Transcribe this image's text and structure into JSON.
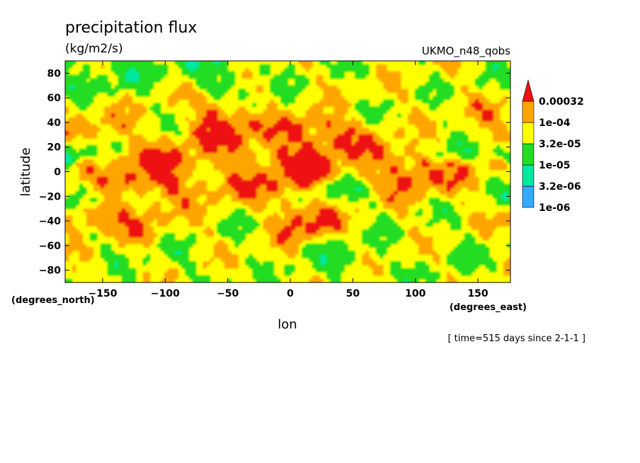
{
  "chart_data": {
    "type": "heatmap",
    "title": "precipitation flux",
    "units": "(kg/m2/s)",
    "dataset": "UKMO_n48_qobs",
    "xlabel": "lon",
    "ylabel": "latitude",
    "x_units": "(degrees_east)",
    "y_units": "(degrees_north)",
    "footnote": "[ time=515 days since 2-1-1 ]",
    "xlim": [
      -180,
      176
    ],
    "ylim": [
      -90,
      90
    ],
    "x_ticks": [
      -150,
      -100,
      -50,
      0,
      50,
      100,
      150
    ],
    "x_tick_labels": [
      "−150",
      "−100",
      "−50",
      "0",
      "50",
      "100",
      "150"
    ],
    "y_ticks": [
      -80,
      -60,
      -40,
      -20,
      0,
      20,
      40,
      60,
      80
    ],
    "y_tick_labels": [
      "−80",
      "−60",
      "−40",
      "−20",
      "0",
      "20",
      "40",
      "60",
      "80"
    ],
    "levels": [
      1e-06,
      3.2e-06,
      1e-05,
      3.2e-05,
      0.0001,
      0.00032
    ],
    "level_labels": [
      "1e-06",
      "3.2e-06",
      "1e-05",
      "3.2e-05",
      "1e-04",
      "0.00032"
    ],
    "colors": [
      "#ffffff",
      "#33aaff",
      "#00e8a0",
      "#22dd22",
      "#ffff00",
      "#ffa500",
      "#ee1111"
    ],
    "grid": false,
    "legend": "right",
    "field": [
      {
        "lon": -180,
        "lat": 10,
        "value": 6e-06
      },
      {
        "lon": -170,
        "lat": 4,
        "value": 0.00015
      },
      {
        "lon": -120,
        "lat": 3,
        "value": 0.00025
      },
      {
        "lon": -110,
        "lat": -1,
        "value": 0.0004
      },
      {
        "lon": -60,
        "lat": 2,
        "value": 0.00015
      },
      {
        "lon": -20,
        "lat": 4,
        "value": 0.0002
      },
      {
        "lon": -10,
        "lat": 5,
        "value": 0.0004
      },
      {
        "lon": 15,
        "lat": 0,
        "value": 0.0004
      },
      {
        "lon": 60,
        "lat": 2,
        "value": 0.00015
      },
      {
        "lon": 100,
        "lat": 3,
        "value": 0.0004
      },
      {
        "lon": 130,
        "lat": 4,
        "value": 0.00015
      },
      {
        "lon": 170,
        "lat": 5,
        "value": 0.0001
      },
      {
        "lon": -140,
        "lat": 40,
        "value": 0.00012
      },
      {
        "lon": -120,
        "lat": 48,
        "value": 5e-05
      },
      {
        "lon": -95,
        "lat": 57,
        "value": 6e-05
      },
      {
        "lon": -50,
        "lat": 43,
        "value": 0.00035
      },
      {
        "lon": -20,
        "lat": 55,
        "value": 5e-05
      },
      {
        "lon": 25,
        "lat": 32,
        "value": 0.0004
      },
      {
        "lon": 50,
        "lat": 55,
        "value": 5e-05
      },
      {
        "lon": 85,
        "lat": 50,
        "value": 6e-05
      },
      {
        "lon": 120,
        "lat": 35,
        "value": 5e-05
      },
      {
        "lon": 160,
        "lat": 35,
        "value": 0.00012
      },
      {
        "lon": -155,
        "lat": -35,
        "value": 0.0003
      },
      {
        "lon": -120,
        "lat": -38,
        "value": 0.00015
      },
      {
        "lon": -80,
        "lat": -42,
        "value": 6e-05
      },
      {
        "lon": -30,
        "lat": -45,
        "value": 5e-05
      },
      {
        "lon": 15,
        "lat": -40,
        "value": 0.00035
      },
      {
        "lon": 60,
        "lat": -40,
        "value": 5e-05
      },
      {
        "lon": 120,
        "lat": -43,
        "value": 5e-05
      },
      {
        "lon": -160,
        "lat": -62,
        "value": 5e-05
      },
      {
        "lon": -90,
        "lat": -72,
        "value": 4e-05
      },
      {
        "lon": 40,
        "lat": -68,
        "value": 3e-05
      },
      {
        "lon": 140,
        "lat": -60,
        "value": 4e-05
      },
      {
        "lon": -150,
        "lat": 80,
        "value": 2e-05
      },
      {
        "lon": -60,
        "lat": 78,
        "value": 2e-05
      },
      {
        "lon": 60,
        "lat": 85,
        "value": 5e-05
      },
      {
        "lon": 140,
        "lat": 82,
        "value": 5e-05
      },
      {
        "lon": -170,
        "lat": -20,
        "value": 3e-05
      },
      {
        "lon": 40,
        "lat": -15,
        "value": 3e-05
      },
      {
        "lon": 130,
        "lat": 15,
        "value": 3e-05
      }
    ]
  }
}
